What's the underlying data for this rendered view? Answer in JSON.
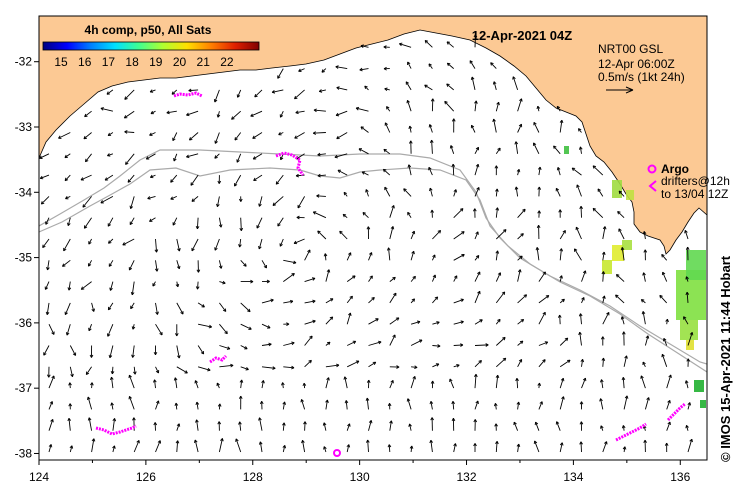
{
  "colorbar": {
    "title": "4h comp, p50, All Sats",
    "ticks": [
      "15",
      "16",
      "17",
      "18",
      "19",
      "20",
      "21",
      "22"
    ],
    "colors": [
      "#00007f",
      "#0000ff",
      "#0080ff",
      "#00e0ff",
      "#40ff90",
      "#b0ff30",
      "#ffe000",
      "#ff8000",
      "#e02000",
      "#800000"
    ]
  },
  "map": {
    "date_label": "12-Apr-2021 04Z",
    "land_color": "#fcc994",
    "x_ticks": [
      "124",
      "126",
      "128",
      "130",
      "132",
      "134",
      "136"
    ],
    "y_ticks": [
      "-32",
      "-33",
      "-34",
      "-35",
      "-36",
      "-37",
      "-38"
    ],
    "lon_range": [
      124,
      136.5
    ],
    "lat_range": [
      -38.1,
      -31.3
    ]
  },
  "legend": {
    "model": "NRT00 GSL",
    "time": "12-Apr 06:00Z",
    "scale": "0.5m/s (1kt 24h)"
  },
  "argo": {
    "title": "Argo",
    "line1": "drifters@12h",
    "line2": "to 13/04 12Z",
    "color": "#ff00ff"
  },
  "credit": "© IMOS 15-Apr-2021 11:44 Hobart"
}
